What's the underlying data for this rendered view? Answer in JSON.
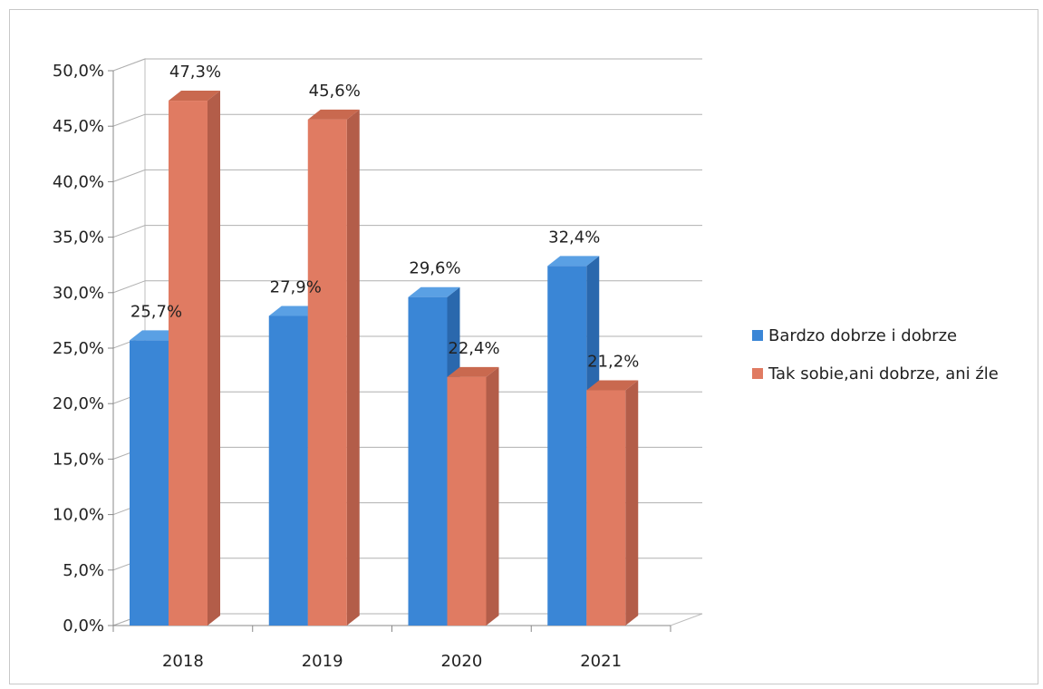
{
  "chart_data": {
    "type": "bar",
    "style": "3d-clustered-column",
    "categories": [
      "2018",
      "2019",
      "2020",
      "2021"
    ],
    "series": [
      {
        "name": "Bardzo dobrze i dobrze",
        "values": [
          25.7,
          27.9,
          29.6,
          32.4
        ],
        "labels": [
          "25,7%",
          "27,9%",
          "29,6%",
          "32,4%"
        ],
        "color": "#3a86d6",
        "side_color": "#2a68ad",
        "top_color": "#5aa0e4"
      },
      {
        "name": "Tak sobie,ani dobrze, ani źle",
        "values": [
          47.3,
          45.6,
          22.4,
          21.2
        ],
        "labels": [
          "47,3%",
          "45,6%",
          "22,4%",
          "21,2%"
        ],
        "color": "#e07b62",
        "side_color": "#b35d49",
        "top_color": "#c9694f"
      }
    ],
    "ylim": [
      0,
      50
    ],
    "yticks": [
      "0,0%",
      "5,0%",
      "10,0%",
      "15,0%",
      "20,0%",
      "25,0%",
      "30,0%",
      "35,0%",
      "40,0%",
      "45,0%",
      "50,0%"
    ],
    "grid": true,
    "legend_position": "right",
    "title": "",
    "xlabel": "",
    "ylabel": ""
  }
}
